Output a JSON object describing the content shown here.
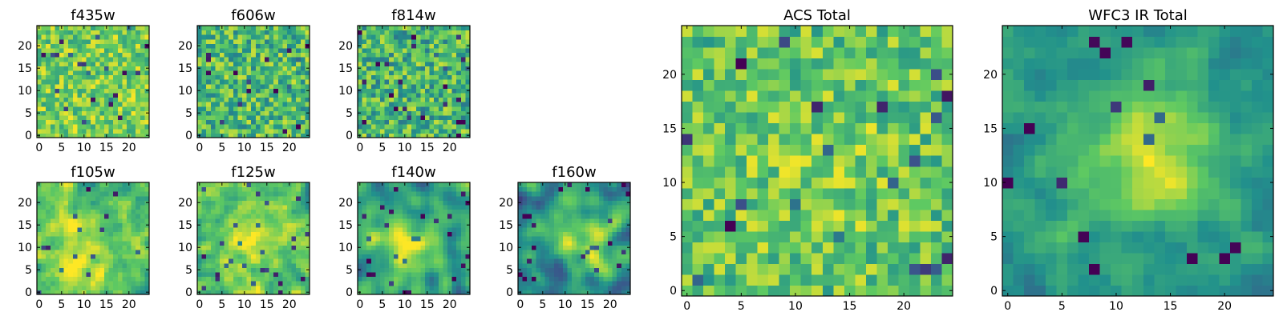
{
  "figure": {
    "layout": "grid of 9 image panels (2 rows of small panels + 2 large totals)"
  },
  "colormap": {
    "name": "viridis",
    "stops": [
      "#440154",
      "#3b528b",
      "#21918c",
      "#5ec962",
      "#fde725"
    ]
  },
  "chart_data": [
    {
      "type": "heatmap",
      "title": "f435w",
      "grid_size": 25,
      "xlim": [
        -0.5,
        24.5
      ],
      "ylim": [
        -0.5,
        24.5
      ],
      "xticks": [
        0,
        5,
        10,
        15,
        20
      ],
      "yticks": [
        0,
        5,
        10,
        15,
        20
      ],
      "xtick_labels": [
        "0",
        "5",
        "10",
        "15",
        "20"
      ],
      "ytick_labels": [
        "0",
        "5",
        "10",
        "15",
        "20"
      ],
      "texture": {
        "seed": 11,
        "mean": 0.78,
        "noise": 0.42,
        "smooth": 0,
        "blob": null
      }
    },
    {
      "type": "heatmap",
      "title": "f606w",
      "grid_size": 25,
      "xlim": [
        -0.5,
        24.5
      ],
      "ylim": [
        -0.5,
        24.5
      ],
      "xticks": [
        0,
        5,
        10,
        15,
        20
      ],
      "yticks": [
        0,
        5,
        10,
        15,
        20
      ],
      "xtick_labels": [
        "0",
        "5",
        "10",
        "15",
        "20"
      ],
      "ytick_labels": [
        "0",
        "5",
        "10",
        "15",
        "20"
      ],
      "texture": {
        "seed": 23,
        "mean": 0.68,
        "noise": 0.5,
        "smooth": 0,
        "blob": null
      }
    },
    {
      "type": "heatmap",
      "title": "f814w",
      "grid_size": 25,
      "xlim": [
        -0.5,
        24.5
      ],
      "ylim": [
        -0.5,
        24.5
      ],
      "xticks": [
        0,
        5,
        10,
        15,
        20
      ],
      "yticks": [
        0,
        5,
        10,
        15,
        20
      ],
      "xtick_labels": [
        "0",
        "5",
        "10",
        "15",
        "20"
      ],
      "ytick_labels": [
        "0",
        "5",
        "10",
        "15",
        "20"
      ],
      "texture": {
        "seed": 37,
        "mean": 0.66,
        "noise": 0.52,
        "smooth": 0,
        "blob": null
      }
    },
    {
      "type": "heatmap",
      "title": "f105w",
      "grid_size": 25,
      "xlim": [
        -0.5,
        24.5
      ],
      "ylim": [
        -0.5,
        24.5
      ],
      "xticks": [
        0,
        5,
        10,
        15,
        20
      ],
      "yticks": [
        0,
        5,
        10,
        15,
        20
      ],
      "xtick_labels": [
        "0",
        "5",
        "10",
        "15",
        "20"
      ],
      "ytick_labels": [
        "0",
        "5",
        "10",
        "15",
        "20"
      ],
      "texture": {
        "seed": 41,
        "mean": 0.7,
        "noise": 0.42,
        "smooth": 1,
        "blob": {
          "x": 9,
          "y": 8,
          "sigma": 6,
          "amp": 0.22
        }
      }
    },
    {
      "type": "heatmap",
      "title": "f125w",
      "grid_size": 25,
      "xlim": [
        -0.5,
        24.5
      ],
      "ylim": [
        -0.5,
        24.5
      ],
      "xticks": [
        0,
        5,
        10,
        15,
        20
      ],
      "yticks": [
        0,
        5,
        10,
        15,
        20
      ],
      "xtick_labels": [
        "0",
        "5",
        "10",
        "15",
        "20"
      ],
      "ytick_labels": [
        "0",
        "5",
        "10",
        "15",
        "20"
      ],
      "texture": {
        "seed": 53,
        "mean": 0.7,
        "noise": 0.42,
        "smooth": 1,
        "blob": {
          "x": 12,
          "y": 11,
          "sigma": 6,
          "amp": 0.2
        }
      }
    },
    {
      "type": "heatmap",
      "title": "f140w",
      "grid_size": 25,
      "xlim": [
        -0.5,
        24.5
      ],
      "ylim": [
        -0.5,
        24.5
      ],
      "xticks": [
        0,
        5,
        10,
        15,
        20
      ],
      "yticks": [
        0,
        5,
        10,
        15,
        20
      ],
      "xtick_labels": [
        "0",
        "5",
        "10",
        "15",
        "20"
      ],
      "ytick_labels": [
        "0",
        "5",
        "10",
        "15",
        "20"
      ],
      "texture": {
        "seed": 67,
        "mean": 0.56,
        "noise": 0.38,
        "smooth": 2,
        "blob": {
          "x": 10,
          "y": 10,
          "sigma": 5,
          "amp": 0.3
        }
      }
    },
    {
      "type": "heatmap",
      "title": "f160w",
      "grid_size": 25,
      "xlim": [
        -0.5,
        24.5
      ],
      "ylim": [
        -0.5,
        24.5
      ],
      "xticks": [
        0,
        5,
        10,
        15,
        20
      ],
      "yticks": [
        0,
        5,
        10,
        15,
        20
      ],
      "xtick_labels": [
        "0",
        "5",
        "10",
        "15",
        "20"
      ],
      "ytick_labels": [
        "0",
        "5",
        "10",
        "15",
        "20"
      ],
      "texture": {
        "seed": 79,
        "mean": 0.5,
        "noise": 0.42,
        "smooth": 2,
        "blob": {
          "x": 13,
          "y": 12,
          "sigma": 4.5,
          "amp": 0.38
        }
      }
    },
    {
      "type": "heatmap",
      "title": "ACS Total",
      "grid_size": 25,
      "xlim": [
        -0.5,
        24.5
      ],
      "ylim": [
        -0.5,
        24.5
      ],
      "xticks": [
        0,
        5,
        10,
        15,
        20
      ],
      "yticks": [
        0,
        5,
        10,
        15,
        20
      ],
      "xtick_labels": [
        "0",
        "5",
        "10",
        "15",
        "20"
      ],
      "ytick_labels": [
        "0",
        "5",
        "10",
        "15",
        "20"
      ],
      "texture": {
        "seed": 97,
        "mean": 0.72,
        "noise": 0.42,
        "smooth": 0,
        "blob": {
          "x": 12,
          "y": 12,
          "sigma": 6,
          "amp": 0.08
        }
      }
    },
    {
      "type": "heatmap",
      "title": "WFC3 IR Total",
      "grid_size": 25,
      "xlim": [
        -0.5,
        24.5
      ],
      "ylim": [
        -0.5,
        24.5
      ],
      "xticks": [
        0,
        5,
        10,
        15,
        20
      ],
      "yticks": [
        0,
        5,
        10,
        15,
        20
      ],
      "xtick_labels": [
        "0",
        "5",
        "10",
        "15",
        "20"
      ],
      "ytick_labels": [
        "0",
        "5",
        "10",
        "15",
        "20"
      ],
      "texture": {
        "seed": 131,
        "mean": 0.52,
        "noise": 0.3,
        "smooth": 1,
        "blob": {
          "x": 13,
          "y": 12,
          "sigma": 4.5,
          "amp": 0.42
        }
      }
    }
  ]
}
